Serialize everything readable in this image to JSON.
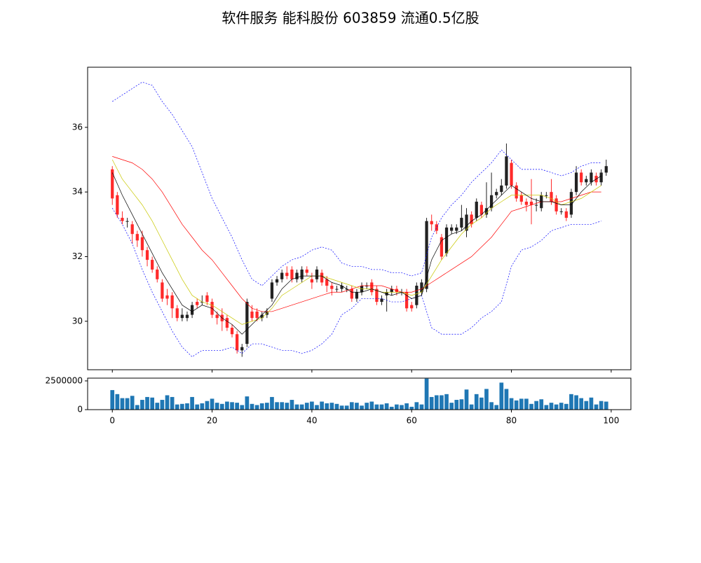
{
  "chart_data": {
    "type": "candlestick",
    "title": "软件服务 能科股份 603859 流通0.5亿股",
    "colorup": "#222222",
    "colordown": "#ff2a2a",
    "xlim": [
      -4.95,
      103.95
    ],
    "xticks": [
      0,
      20,
      40,
      60,
      80,
      100
    ],
    "ylim": [
      28.5,
      37.86
    ],
    "yticks": [
      30,
      32,
      34,
      36
    ],
    "open": [
      34.7,
      33.9,
      33.2,
      33.1,
      33.0,
      32.7,
      32.6,
      32.2,
      31.9,
      31.6,
      31.2,
      30.8,
      30.8,
      30.4,
      30.1,
      30.1,
      30.2,
      30.6,
      30.6,
      30.8,
      30.6,
      30.2,
      30.2,
      30.1,
      29.8,
      29.6,
      29.1,
      29.3,
      30.3,
      30.3,
      30.1,
      30.2,
      30.7,
      31.2,
      31.3,
      31.5,
      31.6,
      31.3,
      31.3,
      31.6,
      31.3,
      31.3,
      31.5,
      31.3,
      31.1,
      31.0,
      31.0,
      31.0,
      31.0,
      30.7,
      30.9,
      31.1,
      31.2,
      31.0,
      30.6,
      30.8,
      30.9,
      31.0,
      30.9,
      30.9,
      30.5,
      30.5,
      30.9,
      31.0,
      33.1,
      33.0,
      32.6,
      32.1,
      32.8,
      32.8,
      32.9,
      32.8,
      33.3,
      33.2,
      33.6,
      33.3,
      33.5,
      33.9,
      34.0,
      34.2,
      34.9,
      34.2,
      33.9,
      33.7,
      33.7,
      33.6,
      33.5,
      33.9,
      34.0,
      33.8,
      33.4,
      33.4,
      33.3,
      34.0,
      34.6,
      34.3,
      34.3,
      34.5,
      34.3,
      34.6
    ],
    "high": [
      34.8,
      34.0,
      33.4,
      33.2,
      33.1,
      32.8,
      32.8,
      32.3,
      32.0,
      31.7,
      31.3,
      31.0,
      30.9,
      30.5,
      30.4,
      30.3,
      30.6,
      30.7,
      30.8,
      30.9,
      30.7,
      30.3,
      30.4,
      30.2,
      29.9,
      29.7,
      29.3,
      30.7,
      30.5,
      30.4,
      30.3,
      30.4,
      31.3,
      31.4,
      31.6,
      31.7,
      31.7,
      31.6,
      31.7,
      31.7,
      31.5,
      31.7,
      31.6,
      31.4,
      31.2,
      31.1,
      31.2,
      31.1,
      31.1,
      31.0,
      31.2,
      31.2,
      31.3,
      31.1,
      30.8,
      31.0,
      31.1,
      31.1,
      31.0,
      31.0,
      30.6,
      31.2,
      31.3,
      33.2,
      33.3,
      33.1,
      32.7,
      33.0,
      33.0,
      33.0,
      33.6,
      33.5,
      33.4,
      33.8,
      33.7,
      34.3,
      34.6,
      34.1,
      34.4,
      35.5,
      35.0,
      34.3,
      34.0,
      33.8,
      34.4,
      33.8,
      34.0,
      34.0,
      34.4,
      33.9,
      33.5,
      33.5,
      34.1,
      34.8,
      34.7,
      34.5,
      34.7,
      34.6,
      34.7,
      35.0
    ],
    "low": [
      33.6,
      33.2,
      33.0,
      32.9,
      32.4,
      32.3,
      32.0,
      31.7,
      31.5,
      31.2,
      30.6,
      30.5,
      30.1,
      30.0,
      30.0,
      30.0,
      30.1,
      30.4,
      30.5,
      30.5,
      30.1,
      29.9,
      29.7,
      29.7,
      29.5,
      29.0,
      28.9,
      29.2,
      30.0,
      30.0,
      30.0,
      30.1,
      30.6,
      31.1,
      31.2,
      31.3,
      31.2,
      31.2,
      31.2,
      31.4,
      31.0,
      31.2,
      31.1,
      30.9,
      30.8,
      30.9,
      30.9,
      30.9,
      30.6,
      30.6,
      30.8,
      31.0,
      30.8,
      30.5,
      30.5,
      30.3,
      30.8,
      30.8,
      30.8,
      30.3,
      30.3,
      30.4,
      30.8,
      30.9,
      32.8,
      32.7,
      31.9,
      32.0,
      32.7,
      32.7,
      32.8,
      32.6,
      32.9,
      33.1,
      33.2,
      33.2,
      33.4,
      33.8,
      33.9,
      34.1,
      34.1,
      33.7,
      33.6,
      33.4,
      33.0,
      33.4,
      33.4,
      33.8,
      33.6,
      33.3,
      33.3,
      33.1,
      33.2,
      33.9,
      34.2,
      34.2,
      34.2,
      34.2,
      34.2,
      34.5
    ],
    "close": [
      33.8,
      33.3,
      33.1,
      33.1,
      32.7,
      32.5,
      32.2,
      31.9,
      31.6,
      31.3,
      30.7,
      30.7,
      30.4,
      30.1,
      30.2,
      30.2,
      30.5,
      30.5,
      30.6,
      30.6,
      30.2,
      30.1,
      30.0,
      29.8,
      29.6,
      29.1,
      29.2,
      30.6,
      30.1,
      30.1,
      30.2,
      30.3,
      31.2,
      31.3,
      31.5,
      31.4,
      31.3,
      31.5,
      31.6,
      31.5,
      31.2,
      31.6,
      31.2,
      31.1,
      31.0,
      31.0,
      31.1,
      31.0,
      30.7,
      30.9,
      31.1,
      31.1,
      30.9,
      30.6,
      30.7,
      30.9,
      31.0,
      30.9,
      30.9,
      30.4,
      30.4,
      31.1,
      31.2,
      33.1,
      33.0,
      32.8,
      32.0,
      32.9,
      32.9,
      32.9,
      33.2,
      33.3,
      33.0,
      33.7,
      33.3,
      33.5,
      33.9,
      34.0,
      34.2,
      35.1,
      34.2,
      33.8,
      33.7,
      33.6,
      33.6,
      33.6,
      33.9,
      33.9,
      33.7,
      33.4,
      33.4,
      33.2,
      34.0,
      34.6,
      34.3,
      34.4,
      34.6,
      34.3,
      34.6,
      34.8
    ],
    "lines": {
      "x": [
        0,
        2,
        4,
        6,
        8,
        10,
        12,
        14,
        16,
        18,
        20,
        22,
        24,
        26,
        28,
        30,
        32,
        34,
        36,
        38,
        40,
        42,
        44,
        46,
        48,
        50,
        52,
        54,
        56,
        58,
        60,
        62,
        64,
        66,
        68,
        70,
        72,
        74,
        76,
        78,
        80,
        82,
        84,
        86,
        88,
        90,
        92,
        94,
        96,
        98
      ],
      "series": [
        {
          "color": "#0000ff",
          "dashed": true,
          "values": [
            36.8,
            37.0,
            37.2,
            37.4,
            37.3,
            36.8,
            36.4,
            35.9,
            35.4,
            34.6,
            33.8,
            33.2,
            32.6,
            31.9,
            31.3,
            31.1,
            31.4,
            31.7,
            31.9,
            32.0,
            32.2,
            32.3,
            32.2,
            31.8,
            31.7,
            31.7,
            31.6,
            31.6,
            31.5,
            31.5,
            31.4,
            31.5,
            32.6,
            33.2,
            33.6,
            33.9,
            34.3,
            34.6,
            34.9,
            35.3,
            35.0,
            34.7,
            34.7,
            34.7,
            34.6,
            34.5,
            34.6,
            34.8,
            34.9,
            34.9
          ]
        },
        {
          "color": "#0000ff",
          "dashed": true,
          "values": [
            33.5,
            33.0,
            32.4,
            31.6,
            30.9,
            30.3,
            29.7,
            29.2,
            28.9,
            29.1,
            29.1,
            29.1,
            29.2,
            29.0,
            29.3,
            29.3,
            29.2,
            29.1,
            29.1,
            29.0,
            29.1,
            29.3,
            29.6,
            30.2,
            30.4,
            30.7,
            30.7,
            30.7,
            30.6,
            30.6,
            30.7,
            30.8,
            29.8,
            29.6,
            29.6,
            29.6,
            29.8,
            30.1,
            30.3,
            30.6,
            31.7,
            32.2,
            32.3,
            32.5,
            32.8,
            32.9,
            33.0,
            33.0,
            33.0,
            33.1
          ]
        },
        {
          "color": "#ff0000",
          "dashed": false,
          "values": [
            35.1,
            35.0,
            34.9,
            34.7,
            34.4,
            34.0,
            33.5,
            33.0,
            32.6,
            32.2,
            31.9,
            31.5,
            31.1,
            30.7,
            30.4,
            30.3,
            30.3,
            30.4,
            30.5,
            30.6,
            30.7,
            30.8,
            30.9,
            30.9,
            31.0,
            31.1,
            31.1,
            31.1,
            31.0,
            30.9,
            30.9,
            31.0,
            31.2,
            31.4,
            31.6,
            31.8,
            32.0,
            32.3,
            32.6,
            33.0,
            33.4,
            33.5,
            33.6,
            33.7,
            33.7,
            33.7,
            33.8,
            33.9,
            34.0,
            34.0
          ]
        },
        {
          "color": "#c8c800",
          "dashed": false,
          "values": [
            35.0,
            34.4,
            34.0,
            33.6,
            33.1,
            32.5,
            31.9,
            31.3,
            30.8,
            30.6,
            30.5,
            30.3,
            30.1,
            29.9,
            30.0,
            30.1,
            30.4,
            30.8,
            31.0,
            31.2,
            31.4,
            31.4,
            31.3,
            31.2,
            31.1,
            31.0,
            31.0,
            30.9,
            30.9,
            30.9,
            30.8,
            30.9,
            31.4,
            31.9,
            32.3,
            32.7,
            33.0,
            33.2,
            33.5,
            33.7,
            33.9,
            33.9,
            33.9,
            33.9,
            33.8,
            33.6,
            33.7,
            33.8,
            34.0,
            34.2
          ]
        },
        {
          "color": "#000000",
          "dashed": false,
          "values": [
            34.6,
            33.9,
            33.3,
            32.7,
            32.1,
            31.5,
            31.0,
            30.5,
            30.3,
            30.5,
            30.4,
            30.1,
            29.9,
            29.6,
            29.9,
            30.2,
            30.5,
            31.0,
            31.3,
            31.4,
            31.4,
            31.4,
            31.2,
            31.1,
            30.9,
            30.9,
            31.0,
            30.9,
            30.8,
            30.9,
            30.7,
            30.8,
            31.9,
            32.5,
            32.7,
            32.8,
            33.1,
            33.3,
            33.6,
            33.9,
            34.2,
            34.0,
            33.8,
            33.7,
            33.7,
            33.6,
            33.6,
            34.0,
            34.3,
            34.5
          ]
        }
      ]
    },
    "volume": {
      "color": "#1f77b4",
      "ylim": [
        0,
        2740000
      ],
      "yticks": [
        0,
        2500000
      ],
      "values": [
        1700000,
        1350000,
        1000000,
        1000000,
        1200000,
        400000,
        850000,
        1100000,
        1050000,
        600000,
        850000,
        1250000,
        1100000,
        450000,
        500000,
        550000,
        1100000,
        450000,
        550000,
        750000,
        950000,
        600000,
        500000,
        700000,
        650000,
        600000,
        400000,
        1150000,
        500000,
        400000,
        550000,
        600000,
        1100000,
        650000,
        650000,
        600000,
        850000,
        450000,
        450000,
        600000,
        700000,
        400000,
        700000,
        550000,
        600000,
        500000,
        350000,
        350000,
        650000,
        600000,
        350000,
        600000,
        700000,
        450000,
        450000,
        550000,
        250000,
        450000,
        400000,
        550000,
        250000,
        650000,
        450000,
        2700000,
        1100000,
        1250000,
        1250000,
        1350000,
        600000,
        850000,
        900000,
        1750000,
        450000,
        1350000,
        1050000,
        1800000,
        650000,
        400000,
        2350000,
        1800000,
        1000000,
        800000,
        950000,
        950000,
        500000,
        750000,
        900000,
        400000,
        600000,
        450000,
        600000,
        500000,
        1350000,
        1250000,
        1000000,
        750000,
        1050000,
        450000,
        750000,
        700000
      ]
    }
  }
}
